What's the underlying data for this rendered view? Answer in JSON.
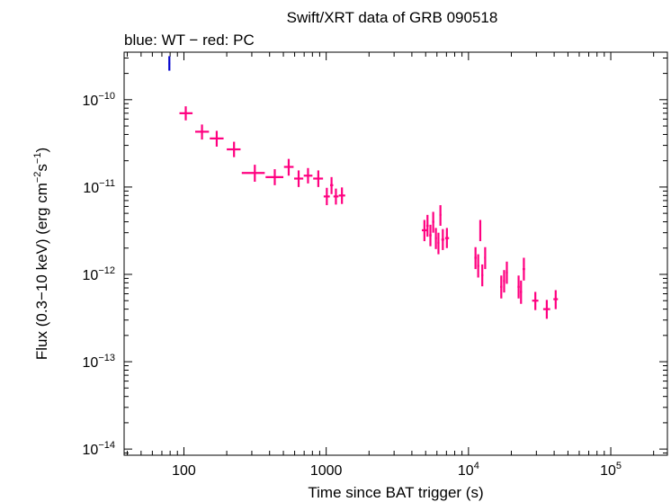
{
  "chart_data": {
    "type": "scatter",
    "title": "Swift/XRT data of GRB 090518",
    "subtitle": "blue: WT − red: PC",
    "xlabel": "Time since BAT trigger (s)",
    "ylabel_parts": [
      "Flux (0.3−10 keV) (erg cm",
      "−2",
      "s",
      "−1",
      ")"
    ],
    "xscale": "log",
    "yscale": "log",
    "xlim": [
      38,
      250000
    ],
    "ylim": [
      8.5e-15,
      3.5e-10
    ],
    "x_ticks": [
      {
        "value": 100,
        "base": "100",
        "exp": ""
      },
      {
        "value": 1000,
        "base": "1000",
        "exp": ""
      },
      {
        "value": 10000,
        "base": "10",
        "exp": "4"
      },
      {
        "value": 100000,
        "base": "10",
        "exp": "5"
      }
    ],
    "y_ticks": [
      {
        "value": 1e-10,
        "base": "10",
        "exp": "−10"
      },
      {
        "value": 1e-11,
        "base": "10",
        "exp": "−11"
      },
      {
        "value": 1e-12,
        "base": "10",
        "exp": "−12"
      },
      {
        "value": 1e-13,
        "base": "10",
        "exp": "−13"
      },
      {
        "value": 1e-14,
        "base": "10",
        "exp": "−14"
      }
    ],
    "series": [
      {
        "color": "#0000cc",
        "points": [
          {
            "x": 79,
            "xlo": 78,
            "xhi": 80,
            "y": 2.6e-10,
            "ylo": 2.15e-10,
            "yhi": 3.15e-10
          }
        ]
      },
      {
        "color": "#ff0080",
        "points": [
          {
            "x": 103,
            "xlo": 93,
            "xhi": 115,
            "y": 7e-11,
            "ylo": 5.8e-11,
            "yhi": 8.4e-11
          },
          {
            "x": 134,
            "xlo": 120,
            "xhi": 150,
            "y": 4.3e-11,
            "ylo": 3.5e-11,
            "yhi": 5.2e-11
          },
          {
            "x": 170,
            "xlo": 152,
            "xhi": 190,
            "y": 3.6e-11,
            "ylo": 2.9e-11,
            "yhi": 4.4e-11
          },
          {
            "x": 225,
            "xlo": 200,
            "xhi": 250,
            "y": 2.7e-11,
            "ylo": 2.2e-11,
            "yhi": 3.3e-11
          },
          {
            "x": 315,
            "xlo": 255,
            "xhi": 370,
            "y": 1.45e-11,
            "ylo": 1.15e-11,
            "yhi": 1.8e-11
          },
          {
            "x": 435,
            "xlo": 375,
            "xhi": 500,
            "y": 1.3e-11,
            "ylo": 1.05e-11,
            "yhi": 1.6e-11
          },
          {
            "x": 545,
            "xlo": 505,
            "xhi": 590,
            "y": 1.7e-11,
            "ylo": 1.35e-11,
            "yhi": 2.1e-11
          },
          {
            "x": 640,
            "xlo": 595,
            "xhi": 690,
            "y": 1.25e-11,
            "ylo": 1e-11,
            "yhi": 1.55e-11
          },
          {
            "x": 745,
            "xlo": 695,
            "xhi": 800,
            "y": 1.35e-11,
            "ylo": 1.1e-11,
            "yhi": 1.65e-11
          },
          {
            "x": 880,
            "xlo": 810,
            "xhi": 950,
            "y": 1.25e-11,
            "ylo": 1e-11,
            "yhi": 1.55e-11
          },
          {
            "x": 1010,
            "xlo": 960,
            "xhi": 1060,
            "y": 7.8e-12,
            "ylo": 6.2e-12,
            "yhi": 9.8e-12
          },
          {
            "x": 1090,
            "xlo": 1065,
            "xhi": 1120,
            "y": 1.05e-11,
            "ylo": 8.3e-12,
            "yhi": 1.3e-11
          },
          {
            "x": 1170,
            "xlo": 1125,
            "xhi": 1220,
            "y": 7.8e-12,
            "ylo": 6.3e-12,
            "yhi": 9.6e-12
          },
          {
            "x": 1290,
            "xlo": 1225,
            "xhi": 1360,
            "y": 8e-12,
            "ylo": 6.4e-12,
            "yhi": 9.9e-12
          },
          {
            "x": 4900,
            "xlo": 4700,
            "xhi": 5100,
            "y": 3.2e-12,
            "ylo": 2.4e-12,
            "yhi": 4.2e-12
          },
          {
            "x": 5150,
            "xlo": 5050,
            "xhi": 5250,
            "y": 3.6e-12,
            "ylo": 2.7e-12,
            "yhi": 4.8e-12
          },
          {
            "x": 5400,
            "xlo": 5300,
            "xhi": 5500,
            "y": 2.8e-12,
            "ylo": 2.1e-12,
            "yhi": 3.7e-12
          },
          {
            "x": 5650,
            "xlo": 5550,
            "xhi": 5750,
            "y": 4e-12,
            "ylo": 3e-12,
            "yhi": 5.2e-12
          },
          {
            "x": 5900,
            "xlo": 5800,
            "xhi": 6000,
            "y": 2.6e-12,
            "ylo": 1.95e-12,
            "yhi": 3.4e-12
          },
          {
            "x": 6150,
            "xlo": 6050,
            "xhi": 6250,
            "y": 2.3e-12,
            "ylo": 1.7e-12,
            "yhi": 3e-12
          },
          {
            "x": 6350,
            "xlo": 6250,
            "xhi": 6450,
            "y": 4.8e-12,
            "ylo": 3.6e-12,
            "yhi": 6.2e-12
          },
          {
            "x": 6600,
            "xlo": 6450,
            "xhi": 6750,
            "y": 2.5e-12,
            "ylo": 1.9e-12,
            "yhi": 3.3e-12
          },
          {
            "x": 7050,
            "xlo": 6850,
            "xhi": 7300,
            "y": 2.6e-12,
            "ylo": 2e-12,
            "yhi": 3.4e-12
          },
          {
            "x": 11200,
            "xlo": 11000,
            "xhi": 11400,
            "y": 1.55e-12,
            "ylo": 1.15e-12,
            "yhi": 2.05e-12
          },
          {
            "x": 11700,
            "xlo": 11500,
            "xhi": 11900,
            "y": 1.25e-12,
            "ylo": 9.2e-13,
            "yhi": 1.7e-12
          },
          {
            "x": 12100,
            "xlo": 11950,
            "xhi": 12250,
            "y": 3.2e-12,
            "ylo": 2.4e-12,
            "yhi": 4.2e-12
          },
          {
            "x": 12500,
            "xlo": 12300,
            "xhi": 12700,
            "y": 9.8e-13,
            "ylo": 7.3e-13,
            "yhi": 1.3e-12
          },
          {
            "x": 13100,
            "xlo": 12900,
            "xhi": 13300,
            "y": 1.55e-12,
            "ylo": 1.15e-12,
            "yhi": 2.05e-12
          },
          {
            "x": 17000,
            "xlo": 16700,
            "xhi": 17300,
            "y": 7.2e-13,
            "ylo": 5.3e-13,
            "yhi": 9.7e-13
          },
          {
            "x": 17800,
            "xlo": 17500,
            "xhi": 18100,
            "y": 8.4e-13,
            "ylo": 6.2e-13,
            "yhi": 1.12e-12
          },
          {
            "x": 18600,
            "xlo": 18300,
            "xhi": 18900,
            "y": 1.05e-12,
            "ylo": 7.8e-13,
            "yhi": 1.4e-12
          },
          {
            "x": 22500,
            "xlo": 22100,
            "xhi": 22900,
            "y": 7.2e-13,
            "ylo": 5.3e-13,
            "yhi": 9.7e-13
          },
          {
            "x": 23400,
            "xlo": 23000,
            "xhi": 23800,
            "y": 6.3e-13,
            "ylo": 4.6e-13,
            "yhi": 8.5e-13
          },
          {
            "x": 24500,
            "xlo": 24000,
            "xhi": 25000,
            "y": 1.15e-12,
            "ylo": 8.5e-13,
            "yhi": 1.55e-12
          },
          {
            "x": 29500,
            "xlo": 28000,
            "xhi": 31000,
            "y": 5e-13,
            "ylo": 3.9e-13,
            "yhi": 6.3e-13
          },
          {
            "x": 35500,
            "xlo": 33500,
            "xhi": 37500,
            "y": 4e-13,
            "ylo": 3.1e-13,
            "yhi": 5.1e-13
          },
          {
            "x": 41000,
            "xlo": 39500,
            "xhi": 42500,
            "y": 5.2e-13,
            "ylo": 4e-13,
            "yhi": 6.6e-13
          }
        ]
      }
    ]
  }
}
